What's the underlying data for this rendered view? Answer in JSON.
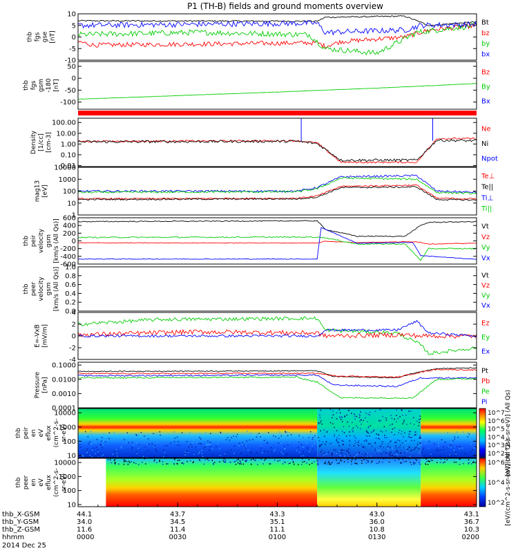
{
  "title": "P1 (TH-B) fields and ground moments overview",
  "panels": [
    {
      "id": "fgs",
      "ylabel": [
        "thb",
        "fgs",
        "gse",
        "[nT]"
      ],
      "ticks": [
        "10",
        "5",
        "0",
        "-5",
        "-10"
      ],
      "tickvals": [
        10,
        5,
        0,
        -5,
        -10
      ],
      "ylim": [
        -10,
        10
      ],
      "log": false,
      "legend": [
        {
          "text": "Bt",
          "color": "#000000"
        },
        {
          "text": "bz",
          "color": "#ff0000"
        },
        {
          "text": "by",
          "color": "#00cc00"
        },
        {
          "text": "bx",
          "color": "#0000ff"
        }
      ]
    },
    {
      "id": "fgs_gsm",
      "ylabel": [
        "thb",
        "fgs",
        "gsm",
        "-180",
        "[nT]"
      ],
      "ticks": [
        "50",
        "0",
        "-50",
        "-100"
      ],
      "tickvals": [
        50,
        0,
        -50,
        -100
      ],
      "ylim": [
        -130,
        70
      ],
      "log": false,
      "legend": [
        {
          "text": "Bz",
          "color": "#ff0000"
        },
        {
          "text": "By",
          "color": "#00cc00"
        },
        {
          "text": "Bx",
          "color": "#0000ff"
        }
      ]
    },
    {
      "id": "density",
      "ylabel": [
        "Density",
        "[1/cc]",
        "[cm-3]"
      ],
      "ticks": [
        "100.00",
        "10.00",
        "1.00",
        "0.10",
        "0.01"
      ],
      "tickvals": [
        2,
        1,
        0,
        -1,
        -2
      ],
      "ylim": [
        -2.1,
        2.4
      ],
      "log": true,
      "legend": [
        {
          "text": "Ne",
          "color": "#ff0000"
        },
        {
          "text": "Ni",
          "color": "#000000"
        },
        {
          "text": "Npot",
          "color": "#0000ff"
        }
      ]
    },
    {
      "id": "temp",
      "ylabel": [
        "mag13",
        "[eV]"
      ],
      "ticks": [
        "10000",
        "1000",
        "100",
        "10",
        "1"
      ],
      "tickvals": [
        4,
        3,
        2,
        1,
        0
      ],
      "ylim": [
        0,
        4
      ],
      "log": true,
      "legend": [
        {
          "text": "Te⊥",
          "color": "#ff0000"
        },
        {
          "text": "Te||",
          "color": "#000000"
        },
        {
          "text": "Ti⊥",
          "color": "#0000ff"
        },
        {
          "text": "Ti||",
          "color": "#00cc00"
        }
      ]
    },
    {
      "id": "peir_vel",
      "ylabel": [
        "thb",
        "peir",
        "velocity",
        "gsm",
        "[km/s (All Qs)]"
      ],
      "ticks": [
        "600",
        "400",
        "200",
        "0",
        "-200",
        "-400",
        "-600"
      ],
      "tickvals": [
        600,
        400,
        200,
        0,
        -200,
        -400,
        -600
      ],
      "ylim": [
        -600,
        600
      ],
      "log": false,
      "legend": [
        {
          "text": "Vt",
          "color": "#000000"
        },
        {
          "text": "Vz",
          "color": "#ff0000"
        },
        {
          "text": "Vy",
          "color": "#00cc00"
        },
        {
          "text": "Vx",
          "color": "#0000ff"
        }
      ]
    },
    {
      "id": "peer_vel",
      "ylabel": [
        "thb",
        "peer",
        "velocity",
        "gsm",
        "[km/s (All Qs)]"
      ],
      "ticks": [
        "1.0",
        "0.8",
        "0.6",
        "0.4",
        "0.2",
        "0.0"
      ],
      "tickvals": [
        1.0,
        0.8,
        0.6,
        0.4,
        0.2,
        0.0
      ],
      "ylim": [
        0,
        1
      ],
      "log": false,
      "legend": [
        {
          "text": "Vt",
          "color": "#000000"
        },
        {
          "text": "Vz",
          "color": "#ff0000"
        },
        {
          "text": "Vy",
          "color": "#00cc00"
        },
        {
          "text": "Vx",
          "color": "#0000ff"
        }
      ]
    },
    {
      "id": "efield",
      "ylabel": [
        "E=-VxB",
        "[mV/m]"
      ],
      "ticks": [
        "4",
        "2",
        "0",
        "-2",
        "-4"
      ],
      "tickvals": [
        4,
        2,
        0,
        -2,
        -4
      ],
      "ylim": [
        -4,
        4
      ],
      "log": false,
      "legend": [
        {
          "text": "Ez",
          "color": "#ff0000"
        },
        {
          "text": "Ey",
          "color": "#00cc00"
        },
        {
          "text": "Ex",
          "color": "#0000ff"
        }
      ]
    },
    {
      "id": "pressure",
      "ylabel": [
        "Pressure",
        "[nPa]"
      ],
      "ticks": [
        "0.1000",
        "0.0100",
        "0.0010",
        "0.0001"
      ],
      "tickvals": [
        -1,
        -2,
        -3,
        -4
      ],
      "ylim": [
        -4,
        -0.8
      ],
      "log": true,
      "legend": [
        {
          "text": "Pt",
          "color": "#000000"
        },
        {
          "text": "Pb",
          "color": "#ff0000"
        },
        {
          "text": "Pe",
          "color": "#00cc00"
        },
        {
          "text": "Pi",
          "color": "#0000ff"
        }
      ]
    },
    {
      "id": "peir_en",
      "ylabel": [
        "thb",
        "peir",
        "en",
        "eV",
        "eflux",
        "(cm^2-s-",
        "sr-eV)"
      ],
      "ticks": [
        "10000",
        "1000",
        "100",
        "10"
      ],
      "tickvals": [
        4,
        3,
        2,
        1
      ],
      "ylim": [
        0.85,
        4.3
      ],
      "log": true,
      "legend": []
    },
    {
      "id": "peer_en",
      "ylabel": [
        "thb",
        "peer",
        "en",
        "eV",
        "eflux",
        "(cm^2-s-",
        "sr-eV)"
      ],
      "ticks": [
        "10000",
        "1000",
        "100",
        "10"
      ],
      "tickvals": [
        4,
        3,
        2,
        1
      ],
      "ylim": [
        0.85,
        4.3
      ],
      "log": true,
      "legend": []
    }
  ],
  "colorbar1": {
    "ticks": [
      "10^7",
      "10^6",
      "10^5",
      "10^4",
      "10^3",
      "10^2"
    ],
    "label": "[eV/(cm^2-s-sr-eV)] (All Qs)"
  },
  "colorbar2": {
    "ticks": [
      "10^6",
      "10^4",
      "10^2"
    ],
    "label": "[eV/(cm^2-s-sr-eV)] (All Qs)"
  },
  "footer": {
    "rows": [
      {
        "label": "thb_X-GSM",
        "values": [
          "44.1",
          "43.7",
          "43.3",
          "43.0",
          "43.1"
        ]
      },
      {
        "label": "thb_Y-GSM",
        "values": [
          "34.0",
          "34.5",
          "35.1",
          "36.0",
          "36.7"
        ]
      },
      {
        "label": "thb_Z-GSM",
        "values": [
          "11.6",
          "11.4",
          "11.1",
          "10.8",
          "10.3"
        ]
      },
      {
        "label": "hhmm",
        "values": [
          "0000",
          "0030",
          "0100",
          "0130",
          "0200"
        ]
      }
    ],
    "date": "2014 Dec 25"
  },
  "chart_data": {
    "type": "line",
    "title": "P1 (TH-B) fields and ground moments overview",
    "x": [
      "0000",
      "0030",
      "0100",
      "0130",
      "0200"
    ],
    "series_overview": [
      {
        "panel": "fgs",
        "name": "Bt",
        "values": [
          7,
          7,
          6,
          9,
          6
        ]
      },
      {
        "panel": "fgs",
        "name": "bz",
        "values": [
          -2,
          -2,
          -3,
          -2,
          3
        ]
      },
      {
        "panel": "fgs",
        "name": "by",
        "values": [
          1,
          2,
          1,
          -6,
          5
        ]
      },
      {
        "panel": "fgs",
        "name": "bx",
        "values": [
          5,
          5,
          6,
          3,
          5
        ]
      },
      {
        "panel": "fgs_gsm",
        "name": "By",
        "values": [
          -85,
          -70,
          -55,
          -40,
          -20
        ]
      },
      {
        "panel": "density",
        "name": "Ne",
        "values": [
          1.5,
          1.8,
          1.2,
          0.03,
          3
        ]
      },
      {
        "panel": "density",
        "name": "Ni",
        "values": [
          1.3,
          1.6,
          1.0,
          0.02,
          2
        ]
      },
      {
        "panel": "temp",
        "name": "Ti⊥",
        "values": [
          100,
          100,
          110,
          1500,
          60
        ]
      },
      {
        "panel": "temp",
        "name": "Te||",
        "values": [
          20,
          30,
          30,
          300,
          25
        ]
      },
      {
        "panel": "peir_vel",
        "name": "Vt",
        "values": [
          500,
          510,
          520,
          100,
          500
        ]
      },
      {
        "panel": "peir_vel",
        "name": "Vz",
        "values": [
          -50,
          -50,
          -60,
          -20,
          -60
        ]
      },
      {
        "panel": "peir_vel",
        "name": "Vy",
        "values": [
          90,
          90,
          100,
          -50,
          -200
        ]
      },
      {
        "panel": "peir_vel",
        "name": "Vx",
        "values": [
          -470,
          -470,
          -470,
          -80,
          -480
        ]
      },
      {
        "panel": "efield",
        "name": "Ey",
        "values": [
          2,
          2.5,
          3,
          0.5,
          -2
        ]
      },
      {
        "panel": "efield",
        "name": "Ez",
        "values": [
          0.5,
          0.6,
          0.5,
          0,
          0
        ]
      },
      {
        "panel": "pressure",
        "name": "Pt",
        "values": [
          0.035,
          0.037,
          0.04,
          0.012,
          0.06
        ]
      },
      {
        "panel": "pressure",
        "name": "Pe",
        "values": [
          0.015,
          0.017,
          0.02,
          0.0004,
          0.015
        ]
      }
    ]
  }
}
